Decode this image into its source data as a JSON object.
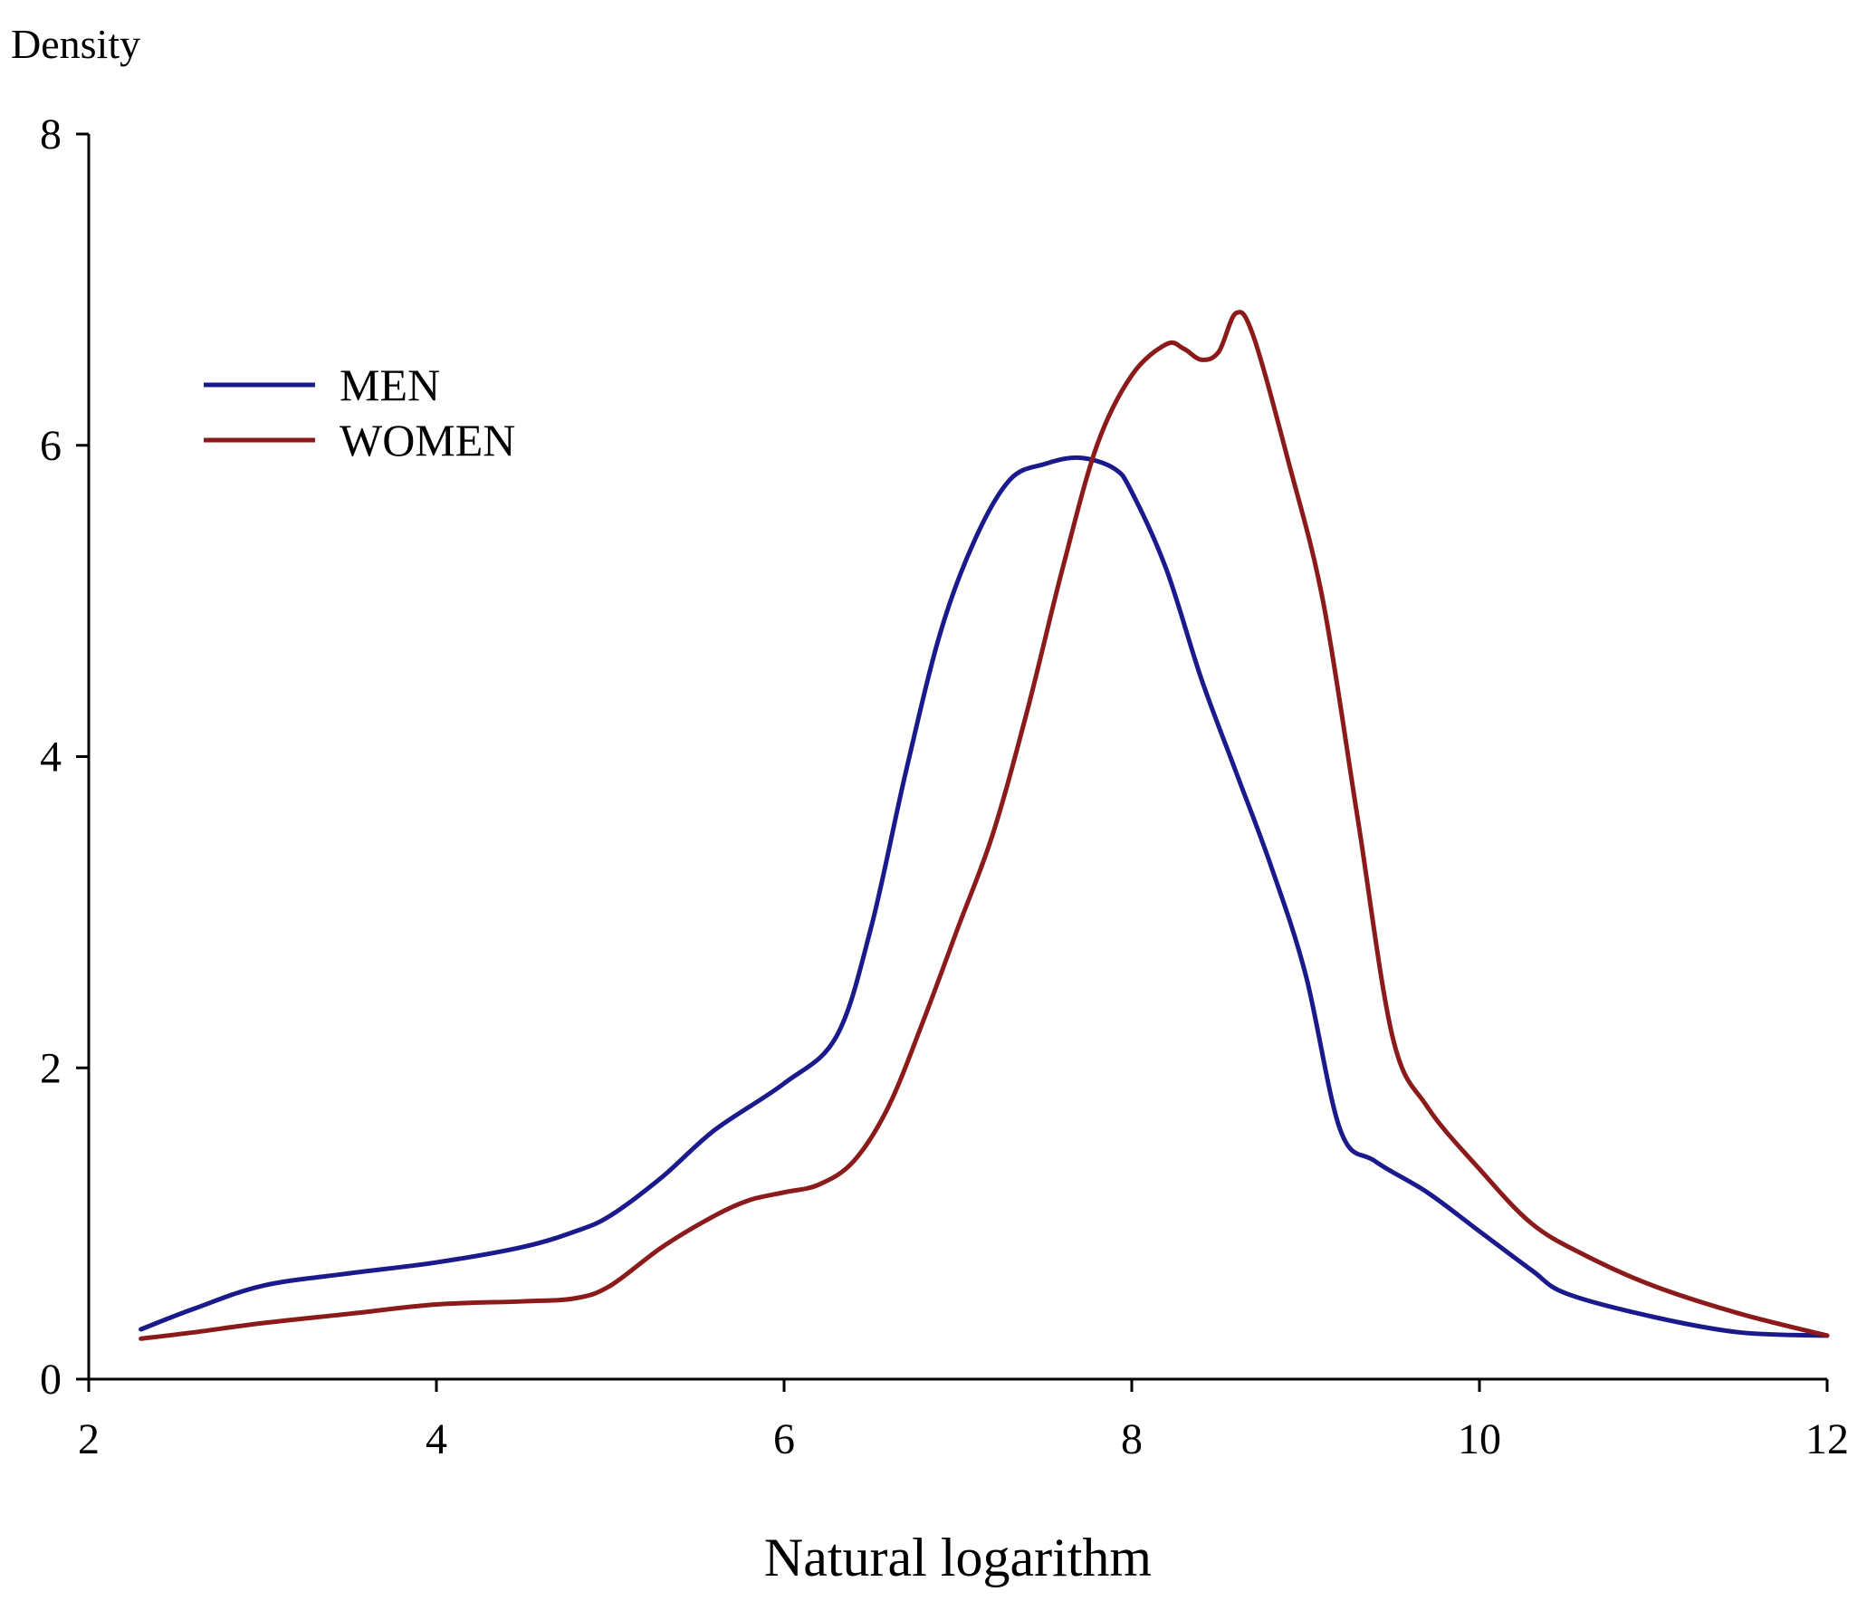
{
  "chart_data": {
    "type": "line",
    "title": "",
    "xlabel": "Natural logarithm",
    "ylabel": "Density",
    "xlim": [
      2,
      12
    ],
    "ylim": [
      0,
      8
    ],
    "xticks": [
      2,
      4,
      6,
      8,
      10,
      12
    ],
    "yticks": [
      0,
      2,
      4,
      6,
      8
    ],
    "grid": false,
    "legend": "upper-left",
    "series": [
      {
        "name": "MEN",
        "color": "#1a1a8c",
        "x": [
          2.3,
          2.6,
          3.0,
          3.5,
          4.0,
          4.5,
          4.8,
          5.0,
          5.3,
          5.6,
          6.0,
          6.3,
          6.5,
          6.7,
          6.9,
          7.1,
          7.3,
          7.5,
          7.7,
          7.9,
          8.0,
          8.2,
          8.4,
          8.6,
          8.8,
          9.0,
          9.2,
          9.4,
          9.7,
          10.0,
          10.3,
          10.5,
          11.0,
          11.5,
          12.0
        ],
        "y": [
          0.32,
          0.45,
          0.6,
          0.68,
          0.75,
          0.85,
          0.95,
          1.05,
          1.3,
          1.6,
          1.9,
          2.2,
          2.9,
          3.9,
          4.8,
          5.4,
          5.78,
          5.88,
          5.92,
          5.85,
          5.7,
          5.2,
          4.5,
          3.9,
          3.3,
          2.6,
          1.6,
          1.4,
          1.2,
          0.95,
          0.7,
          0.55,
          0.4,
          0.3,
          0.28
        ]
      },
      {
        "name": "WOMEN",
        "color": "#8b1a1a",
        "x": [
          2.3,
          2.6,
          3.0,
          3.5,
          4.0,
          4.5,
          4.8,
          5.0,
          5.3,
          5.6,
          5.8,
          6.0,
          6.2,
          6.4,
          6.6,
          6.8,
          7.0,
          7.2,
          7.4,
          7.6,
          7.8,
          8.0,
          8.2,
          8.3,
          8.4,
          8.5,
          8.6,
          8.7,
          8.9,
          9.1,
          9.3,
          9.5,
          9.7,
          10.0,
          10.3,
          10.6,
          11.0,
          11.5,
          12.0
        ],
        "y": [
          0.26,
          0.3,
          0.36,
          0.42,
          0.48,
          0.5,
          0.52,
          0.6,
          0.85,
          1.05,
          1.15,
          1.2,
          1.25,
          1.4,
          1.75,
          2.3,
          2.9,
          3.5,
          4.3,
          5.2,
          6.0,
          6.45,
          6.65,
          6.62,
          6.55,
          6.6,
          6.85,
          6.7,
          5.9,
          5.0,
          3.6,
          2.2,
          1.75,
          1.35,
          1.0,
          0.8,
          0.6,
          0.42,
          0.28
        ]
      }
    ]
  }
}
